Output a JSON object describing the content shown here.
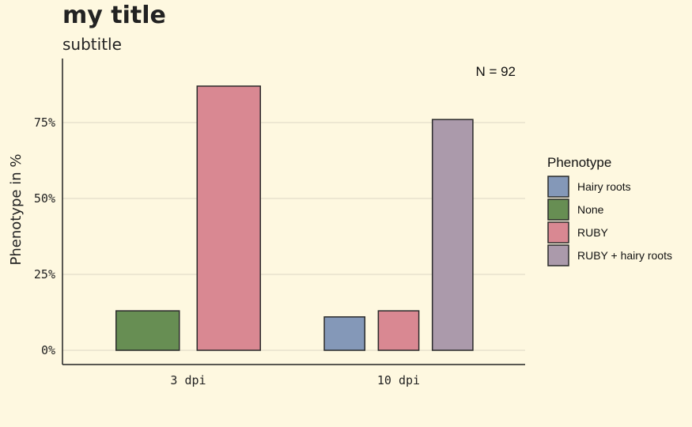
{
  "chart_data": {
    "type": "bar",
    "title": "my title",
    "subtitle": "subtitle",
    "xlabel": "",
    "ylabel": "Phenotype in %",
    "annotation": "N = 92",
    "categories": [
      "3 dpi",
      "10 dpi"
    ],
    "ylim": [
      0,
      0.95
    ],
    "y_ticks": [
      0,
      0.25,
      0.5,
      0.75
    ],
    "y_tick_labels": [
      "0%",
      "25%",
      "50%",
      "75%"
    ],
    "grid": "horizontal major lines",
    "legend": {
      "title": "Phenotype",
      "position": "right"
    },
    "series": [
      {
        "name": "Hairy roots",
        "color": "#8498b8",
        "values": [
          null,
          0.11
        ]
      },
      {
        "name": "None",
        "color": "#678e53",
        "values": [
          0.13,
          null
        ]
      },
      {
        "name": "RUBY",
        "color": "#d98892",
        "values": [
          0.87,
          0.13
        ]
      },
      {
        "name": "RUBY + hairy roots",
        "color": "#ab9aab",
        "values": [
          null,
          0.76
        ]
      }
    ]
  }
}
